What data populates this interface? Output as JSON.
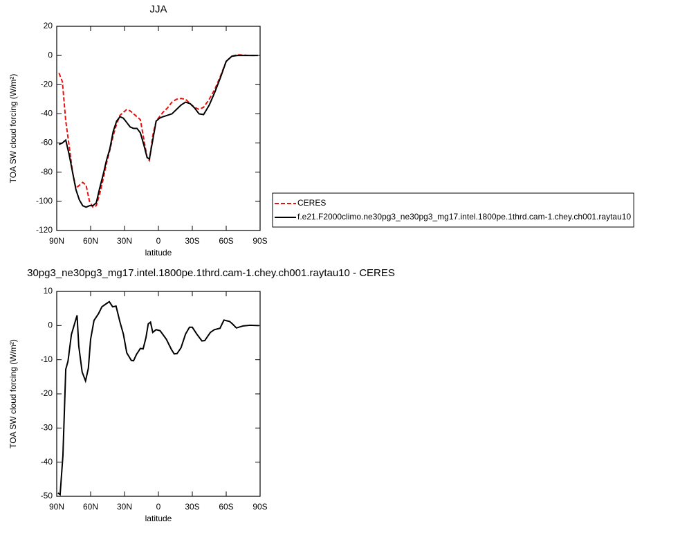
{
  "chart_data": [
    {
      "type": "line",
      "title": "JJA",
      "xlabel": "latitude",
      "ylabel": "TOA SW cloud forcing (W/m²)",
      "x": [
        88,
        85,
        82,
        79,
        76,
        73,
        70,
        67,
        64,
        61,
        58,
        55,
        52,
        49,
        46,
        43,
        40,
        37,
        34,
        31,
        28,
        25,
        22,
        19,
        16,
        13,
        10,
        8,
        5,
        2,
        -1,
        -4,
        -8,
        -12,
        -16,
        -20,
        -24,
        -28,
        -32,
        -36,
        -40,
        -45,
        -50,
        -55,
        -60,
        -65,
        -70,
        -75,
        -80,
        -85,
        -88
      ],
      "series": [
        {
          "name": "CERES",
          "color": "#e8100f",
          "line_style": "dashed",
          "values": [
            -12,
            -18,
            -45,
            -62,
            -80,
            -91,
            -89,
            -87,
            -89,
            -100,
            -104,
            -103,
            -95,
            -85,
            -74,
            -65,
            -55,
            -47,
            -41,
            -39,
            -37,
            -38,
            -40,
            -42,
            -44,
            -57,
            -70,
            -72,
            -55,
            -45,
            -42,
            -39,
            -36,
            -32,
            -30,
            -29.5,
            -30,
            -33,
            -35.5,
            -37,
            -35.5,
            -30,
            -23,
            -14,
            -4,
            -0.5,
            0.5,
            0.3,
            0,
            0,
            0
          ]
        },
        {
          "name": "f.e21.F2000climo.ne30pg3_ne30pg3_mg17.intel.1800pe.1thrd.cam-1.chey.ch001.raytau10",
          "color": "#000000",
          "line_style": "solid",
          "values": [
            -61,
            -60,
            -58,
            -68,
            -80,
            -92,
            -99,
            -103,
            -104,
            -103,
            -103,
            -101,
            -91,
            -82,
            -72,
            -64,
            -52,
            -45,
            -42,
            -43,
            -46,
            -49,
            -50,
            -50,
            -53,
            -61,
            -70,
            -71,
            -58,
            -45,
            -43,
            -42,
            -41,
            -40,
            -37,
            -34,
            -32,
            -33,
            -36,
            -40,
            -40.5,
            -34,
            -25,
            -15,
            -4,
            -0.5,
            0,
            0,
            0,
            0,
            0
          ]
        }
      ],
      "xlim": [
        90,
        -90
      ],
      "xticks": [
        {
          "value": 90,
          "label": "90N"
        },
        {
          "value": 60,
          "label": "60N"
        },
        {
          "value": 30,
          "label": "30N"
        },
        0,
        {
          "value": -30,
          "label": "30S"
        },
        {
          "value": -60,
          "label": "60S"
        },
        {
          "value": -90,
          "label": "90S"
        }
      ],
      "ylim": [
        -120,
        20
      ],
      "yticks": [
        20,
        0,
        -20,
        -40,
        -60,
        -80,
        -100,
        -120
      ],
      "legend": "right"
    },
    {
      "type": "line",
      "title": "30pg3_ne30pg3_mg17.intel.1800pe.1thrd.cam-1.chey.ch001.raytau10 - CERES",
      "xlabel": "latitude",
      "ylabel": "TOA SW cloud forcing (W/m²)",
      "x": [
        89,
        87,
        84.5,
        82,
        80,
        77,
        72,
        70.5,
        67.5,
        64.5,
        62,
        60,
        57,
        53,
        50,
        47,
        43.5,
        40.5,
        37.5,
        34,
        31,
        28,
        24,
        22,
        19.5,
        16,
        13.5,
        11,
        9,
        7,
        5,
        2,
        -1.5,
        -7,
        -11.5,
        -14,
        -16.5,
        -20,
        -24,
        -27.5,
        -30,
        -34,
        -38.5,
        -41,
        -46,
        -49.5,
        -54.5,
        -58,
        -63,
        -65.5,
        -69,
        -75,
        -81,
        -89
      ],
      "series": [
        {
          "color": "#000000",
          "line_style": "solid",
          "values": [
            -49,
            -49.5,
            -38,
            -12.8,
            -10.4,
            -2.6,
            3,
            -6,
            -13.6,
            -16.2,
            -12.5,
            -4,
            1.5,
            3.5,
            5.5,
            6.2,
            7,
            5.5,
            5.7,
            1,
            -2.5,
            -8,
            -10.2,
            -10.3,
            -8.5,
            -6.7,
            -6.8,
            -3.5,
            0.5,
            1,
            -2,
            -1.2,
            -1.5,
            -4,
            -7,
            -8.3,
            -8.2,
            -6.5,
            -2.5,
            -0.5,
            -0.5,
            -2.5,
            -4.5,
            -4.4,
            -2,
            -1.2,
            -0.8,
            1.6,
            1.2,
            0.5,
            -0.7,
            -0.1,
            0.1,
            0
          ]
        }
      ],
      "xlim": [
        90,
        -90
      ],
      "xticks": [
        {
          "value": 90,
          "label": "90N"
        },
        {
          "value": 60,
          "label": "60N"
        },
        {
          "value": 30,
          "label": "30N"
        },
        0,
        {
          "value": -30,
          "label": "30S"
        },
        {
          "value": -60,
          "label": "60S"
        },
        {
          "value": -90,
          "label": "90S"
        }
      ],
      "ylim": [
        -50,
        10
      ],
      "yticks": [
        10,
        0,
        -10,
        -20,
        -30,
        -40,
        -50
      ]
    }
  ]
}
